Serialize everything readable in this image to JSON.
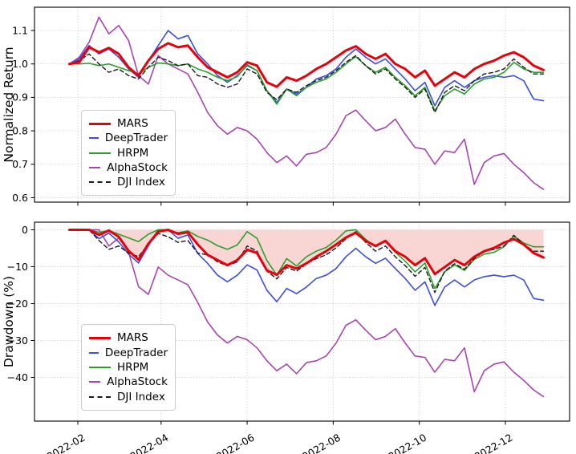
{
  "chart_data": [
    {
      "type": "line",
      "panel": "top",
      "title": "",
      "xlabel": "",
      "ylabel": "Normalized Return",
      "ylim": [
        0.5868,
        1.1696
      ],
      "grid": true,
      "legend_position": "lower left",
      "y_ticks": [
        {
          "value": 1.1,
          "label": "1.1"
        },
        {
          "value": 1.0,
          "label": "1.0"
        },
        {
          "value": 0.9,
          "label": "0.9"
        },
        {
          "value": 0.8,
          "label": "0.8"
        },
        {
          "value": 0.7,
          "label": "0.7"
        },
        {
          "value": 0.6,
          "label": "0.6"
        }
      ],
      "x_ticks": [
        {
          "date": "2022-02-01",
          "label": "2022-02"
        },
        {
          "date": "2022-04-01",
          "label": "2022-04"
        },
        {
          "date": "2022-06-01",
          "label": "2022-06"
        },
        {
          "date": "2022-08-01",
          "label": "2022-08"
        },
        {
          "date": "2022-10-01",
          "label": "2022-10"
        },
        {
          "date": "2022-12-01",
          "label": "2022-12"
        }
      ],
      "x_tick_labels_visible": false,
      "x_dates": [
        "2022-01-26",
        "2022-02-02",
        "2022-02-09",
        "2022-02-16",
        "2022-02-23",
        "2022-03-02",
        "2022-03-09",
        "2022-03-16",
        "2022-03-23",
        "2022-03-30",
        "2022-04-06",
        "2022-04-13",
        "2022-04-20",
        "2022-04-27",
        "2022-05-04",
        "2022-05-11",
        "2022-05-18",
        "2022-05-25",
        "2022-06-01",
        "2022-06-08",
        "2022-06-15",
        "2022-06-22",
        "2022-06-29",
        "2022-07-06",
        "2022-07-13",
        "2022-07-20",
        "2022-07-27",
        "2022-08-03",
        "2022-08-10",
        "2022-08-17",
        "2022-08-24",
        "2022-08-31",
        "2022-09-07",
        "2022-09-14",
        "2022-09-21",
        "2022-09-28",
        "2022-10-05",
        "2022-10-12",
        "2022-10-19",
        "2022-10-26",
        "2022-11-02",
        "2022-11-09",
        "2022-11-16",
        "2022-11-23",
        "2022-11-30",
        "2022-12-07",
        "2022-12-14",
        "2022-12-21",
        "2022-12-28"
      ],
      "series": [
        {
          "name": "MARS",
          "color": "#e8000b",
          "width": 3,
          "dash": "solid",
          "values": [
            1.0,
            1.005,
            1.05,
            1.035,
            1.048,
            1.03,
            0.99,
            0.965,
            1.01,
            1.045,
            1.062,
            1.05,
            1.055,
            1.02,
            0.99,
            0.975,
            0.96,
            0.975,
            1.005,
            0.995,
            0.945,
            0.932,
            0.96,
            0.95,
            0.965,
            0.985,
            1.0,
            1.02,
            1.04,
            1.053,
            1.03,
            1.015,
            1.03,
            1.0,
            0.985,
            0.96,
            0.98,
            0.935,
            0.955,
            0.975,
            0.96,
            0.985,
            1.0,
            1.01,
            1.025,
            1.035,
            1.02,
            0.995,
            0.982
          ]
        },
        {
          "name": "DeepTrader",
          "color": "#3b4fd8",
          "width": 1.6,
          "dash": "solid",
          "values": [
            1.0,
            1.015,
            1.055,
            1.03,
            1.045,
            1.02,
            0.985,
            0.96,
            1.01,
            1.055,
            1.1,
            1.075,
            1.085,
            1.03,
            1.0,
            0.965,
            0.945,
            0.965,
            0.995,
            0.98,
            0.92,
            0.885,
            0.925,
            0.91,
            0.93,
            0.955,
            0.965,
            0.985,
            1.02,
            1.045,
            1.02,
            1.0,
            1.015,
            0.985,
            0.955,
            0.92,
            0.945,
            0.875,
            0.93,
            0.95,
            0.93,
            0.95,
            0.96,
            0.965,
            0.96,
            0.965,
            0.95,
            0.895,
            0.89
          ]
        },
        {
          "name": "HRPM",
          "color": "#2ca02c",
          "width": 1.6,
          "dash": "solid",
          "values": [
            1.0,
            1.0,
            1.002,
            0.995,
            1.0,
            0.99,
            0.98,
            0.97,
            0.99,
            1.003,
            1.0,
            0.995,
            1.0,
            0.985,
            0.975,
            0.96,
            0.95,
            0.962,
            0.998,
            0.98,
            0.92,
            0.88,
            0.925,
            0.905,
            0.93,
            0.945,
            0.955,
            0.975,
            1.0,
            1.022,
            0.995,
            0.975,
            0.99,
            0.96,
            0.935,
            0.905,
            0.93,
            0.86,
            0.905,
            0.925,
            0.91,
            0.94,
            0.955,
            0.96,
            0.975,
            1.005,
            0.985,
            0.975,
            0.975
          ]
        },
        {
          "name": "AlphaStock",
          "color": "#a844b0",
          "width": 1.6,
          "dash": "solid",
          "values": [
            1.0,
            1.02,
            1.065,
            1.14,
            1.09,
            1.115,
            1.07,
            0.965,
            0.94,
            1.025,
            1.0,
            0.985,
            0.97,
            0.915,
            0.855,
            0.815,
            0.79,
            0.81,
            0.8,
            0.775,
            0.735,
            0.705,
            0.725,
            0.695,
            0.73,
            0.735,
            0.75,
            0.79,
            0.845,
            0.862,
            0.83,
            0.8,
            0.81,
            0.835,
            0.79,
            0.75,
            0.745,
            0.7,
            0.74,
            0.735,
            0.775,
            0.64,
            0.705,
            0.725,
            0.732,
            0.7,
            0.675,
            0.645,
            0.625
          ]
        },
        {
          "name": "DJI Index",
          "color": "#1a1a1a",
          "width": 1.4,
          "dash": "dashed",
          "values": [
            1.0,
            1.01,
            1.03,
            1.0,
            0.975,
            0.985,
            0.965,
            0.955,
            0.99,
            1.02,
            1.01,
            0.995,
            1.0,
            0.965,
            0.96,
            0.94,
            0.93,
            0.94,
            0.985,
            0.97,
            0.915,
            0.893,
            0.925,
            0.915,
            0.935,
            0.95,
            0.96,
            0.98,
            1.005,
            1.025,
            0.995,
            0.97,
            0.985,
            0.955,
            0.93,
            0.9,
            0.925,
            0.855,
            0.915,
            0.935,
            0.92,
            0.95,
            0.97,
            0.975,
            0.985,
            1.015,
            0.99,
            0.97,
            0.97
          ]
        }
      ]
    },
    {
      "type": "line",
      "panel": "bottom",
      "title": "",
      "xlabel": "",
      "ylabel": "Drawdown (%)",
      "ylim": [
        -51.85,
        2.06
      ],
      "grid": true,
      "legend_position": "lower left",
      "y_ticks": [
        {
          "value": 0,
          "label": "0"
        },
        {
          "value": -10,
          "label": "−10"
        },
        {
          "value": -20,
          "label": "−20"
        },
        {
          "value": -30,
          "label": "−30"
        },
        {
          "value": -40,
          "label": "−40"
        }
      ],
      "x_ticks": [
        {
          "date": "2022-02-01",
          "label": "2022-02"
        },
        {
          "date": "2022-04-01",
          "label": "2022-04"
        },
        {
          "date": "2022-06-01",
          "label": "2022-06"
        },
        {
          "date": "2022-08-01",
          "label": "2022-08"
        },
        {
          "date": "2022-10-01",
          "label": "2022-10"
        },
        {
          "date": "2022-12-01",
          "label": "2022-12"
        }
      ],
      "x_tick_labels_visible": true,
      "fill_between": {
        "series": "MARS",
        "baseline": 0,
        "color": "#f9d6d3"
      },
      "x_dates": [
        "2022-01-26",
        "2022-02-02",
        "2022-02-09",
        "2022-02-16",
        "2022-02-23",
        "2022-03-02",
        "2022-03-09",
        "2022-03-16",
        "2022-03-23",
        "2022-03-30",
        "2022-04-06",
        "2022-04-13",
        "2022-04-20",
        "2022-04-27",
        "2022-05-04",
        "2022-05-11",
        "2022-05-18",
        "2022-05-25",
        "2022-06-01",
        "2022-06-08",
        "2022-06-15",
        "2022-06-22",
        "2022-06-29",
        "2022-07-06",
        "2022-07-13",
        "2022-07-20",
        "2022-07-27",
        "2022-08-03",
        "2022-08-10",
        "2022-08-17",
        "2022-08-24",
        "2022-08-31",
        "2022-09-07",
        "2022-09-14",
        "2022-09-21",
        "2022-09-28",
        "2022-10-05",
        "2022-10-12",
        "2022-10-19",
        "2022-10-26",
        "2022-11-02",
        "2022-11-09",
        "2022-11-16",
        "2022-11-23",
        "2022-11-30",
        "2022-12-07",
        "2022-12-14",
        "2022-12-21",
        "2022-12-28"
      ],
      "series": [
        {
          "name": "MARS",
          "color": "#e8000b",
          "width": 3,
          "dash": "solid",
          "values": [
            0.0,
            0.0,
            0.0,
            -1.4,
            -0.2,
            -1.9,
            -5.7,
            -8.1,
            -3.8,
            -0.5,
            0.0,
            -1.1,
            -0.7,
            -4.0,
            -6.8,
            -8.2,
            -9.6,
            -8.2,
            -5.4,
            -6.3,
            -11.0,
            -12.2,
            -9.6,
            -10.5,
            -9.1,
            -7.3,
            -5.8,
            -4.0,
            -2.1,
            -0.8,
            -3.0,
            -4.4,
            -3.0,
            -5.8,
            -7.3,
            -9.6,
            -7.7,
            -12.0,
            -10.1,
            -8.2,
            -9.6,
            -7.3,
            -5.8,
            -4.9,
            -3.5,
            -2.5,
            -4.0,
            -6.3,
            -7.5
          ]
        },
        {
          "name": "DeepTrader",
          "color": "#3b4fd8",
          "width": 1.6,
          "dash": "solid",
          "values": [
            0.0,
            0.0,
            0.0,
            -2.4,
            -0.9,
            -3.3,
            -6.6,
            -9.0,
            -4.3,
            0.0,
            0.0,
            -2.3,
            -1.4,
            -6.4,
            -9.1,
            -12.3,
            -14.1,
            -12.3,
            -9.5,
            -10.9,
            -16.4,
            -19.5,
            -15.9,
            -17.3,
            -15.5,
            -13.2,
            -12.3,
            -10.5,
            -7.3,
            -5.0,
            -7.3,
            -9.1,
            -7.7,
            -10.5,
            -13.2,
            -16.4,
            -14.1,
            -20.5,
            -15.5,
            -13.6,
            -15.5,
            -13.6,
            -12.7,
            -12.3,
            -12.7,
            -12.3,
            -13.6,
            -18.6,
            -19.1
          ]
        },
        {
          "name": "HRPM",
          "color": "#2ca02c",
          "width": 1.6,
          "dash": "solid",
          "values": [
            0.0,
            0.0,
            0.0,
            -0.7,
            -0.2,
            -1.2,
            -2.2,
            -3.2,
            -1.2,
            0.0,
            -0.3,
            -0.8,
            -0.3,
            -1.8,
            -2.8,
            -4.3,
            -5.3,
            -4.1,
            -0.5,
            -2.3,
            -8.3,
            -12.3,
            -7.8,
            -9.8,
            -7.3,
            -5.8,
            -4.8,
            -2.8,
            -0.3,
            0.0,
            -2.6,
            -4.6,
            -3.1,
            -6.1,
            -8.5,
            -11.4,
            -9.0,
            -15.9,
            -11.4,
            -9.5,
            -11.0,
            -8.0,
            -6.6,
            -6.1,
            -4.6,
            -1.7,
            -3.6,
            -4.6,
            -4.6
          ]
        },
        {
          "name": "AlphaStock",
          "color": "#a844b0",
          "width": 1.6,
          "dash": "solid",
          "values": [
            0.0,
            0.0,
            0.0,
            0.0,
            -4.4,
            -2.2,
            -6.1,
            -15.4,
            -17.5,
            -10.1,
            -12.3,
            -13.6,
            -14.9,
            -19.7,
            -25.0,
            -28.5,
            -30.7,
            -28.9,
            -29.8,
            -32.0,
            -35.5,
            -38.2,
            -36.4,
            -39.0,
            -36.0,
            -35.5,
            -34.2,
            -30.7,
            -25.9,
            -24.4,
            -27.2,
            -29.8,
            -28.9,
            -26.8,
            -30.7,
            -34.2,
            -34.6,
            -38.6,
            -35.1,
            -35.5,
            -32.0,
            -43.9,
            -38.2,
            -36.4,
            -35.8,
            -38.6,
            -40.8,
            -43.4,
            -45.2
          ]
        },
        {
          "name": "DJI Index",
          "color": "#1a1a1a",
          "width": 1.4,
          "dash": "dashed",
          "values": [
            0.0,
            0.0,
            0.0,
            -2.9,
            -5.3,
            -4.4,
            -6.3,
            -7.3,
            -3.9,
            -1.0,
            -1.9,
            -3.4,
            -2.9,
            -6.3,
            -6.8,
            -8.7,
            -9.7,
            -8.7,
            -4.4,
            -5.8,
            -11.2,
            -13.3,
            -10.2,
            -11.2,
            -9.2,
            -7.8,
            -6.8,
            -4.9,
            -2.4,
            -0.5,
            -3.4,
            -5.8,
            -4.4,
            -7.3,
            -9.7,
            -12.6,
            -10.2,
            -17.0,
            -11.2,
            -9.2,
            -10.7,
            -7.8,
            -5.8,
            -5.3,
            -4.4,
            -1.5,
            -3.9,
            -5.8,
            -5.8
          ]
        }
      ]
    }
  ]
}
